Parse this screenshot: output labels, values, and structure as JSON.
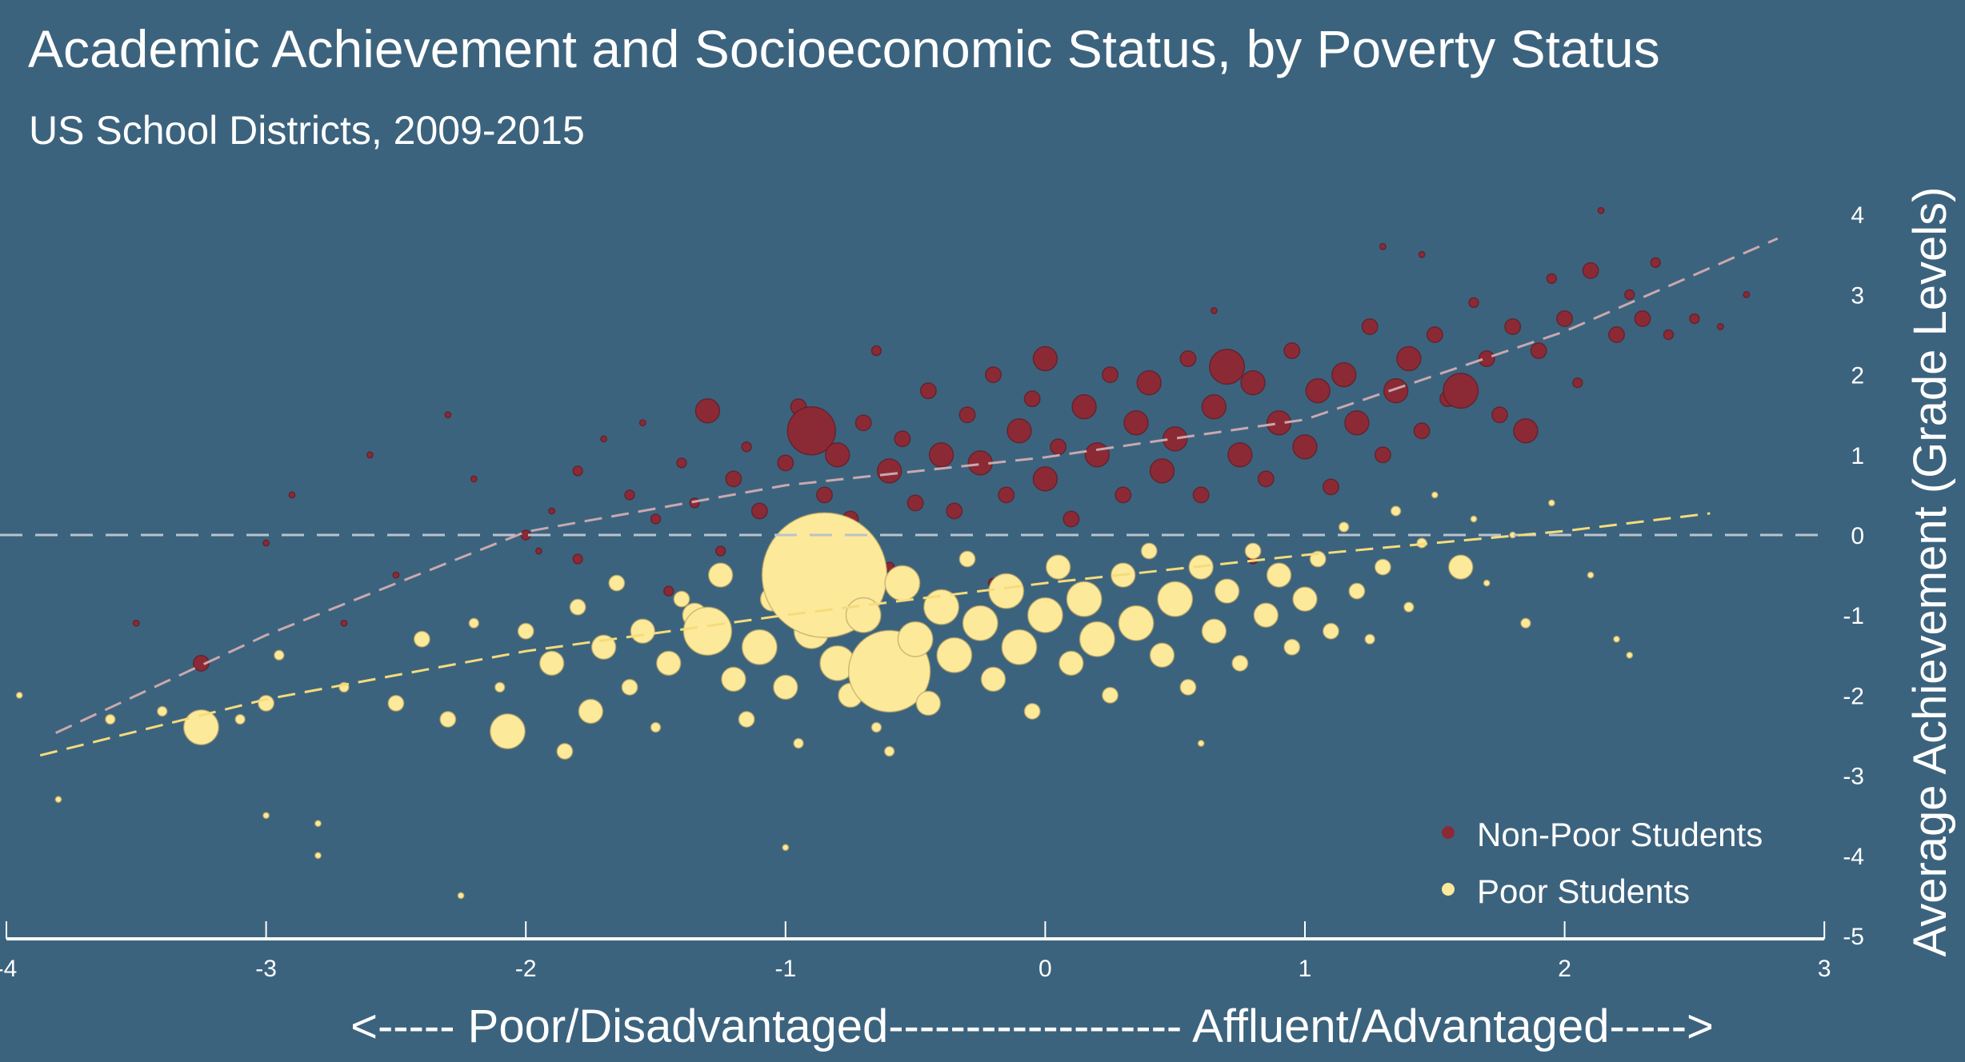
{
  "chart_data": {
    "type": "scatter",
    "title": "Academic Achievement and Socioeconomic Status, by Poverty Status",
    "subtitle": "US School Districts, 2009-2015",
    "xlabel": "<----- Poor/Disadvantaged------------------- Affluent/Advantaged----->",
    "ylabel": "Average Achievement (Grade Levels)",
    "xlim": [
      -4,
      3
    ],
    "ylim": [
      -5,
      4
    ],
    "x_ticks": [
      "-4",
      "-3",
      "-2",
      "-1",
      "0",
      "1",
      "2",
      "3"
    ],
    "y_ticks": [
      "4",
      "3",
      "2",
      "1",
      "0",
      "-1",
      "-2",
      "-3",
      "-4",
      "-5"
    ],
    "grid": false,
    "reference_line_y": 0,
    "legend_position": "bottom-right",
    "colors": {
      "background": "#3c637e",
      "non_poor": "#8b2a35",
      "poor": "#fde99a",
      "non_poor_trend": "#c9a9ae",
      "poor_trend": "#f5dc7a",
      "reference": "#b9c3cc"
    },
    "point_fields": [
      "x",
      "y",
      "relative_size"
    ],
    "series": [
      {
        "name": "Non-Poor Students",
        "points": [
          [
            -3.25,
            -1.6,
            3
          ],
          [
            -3.0,
            -0.1,
            1
          ],
          [
            -2.9,
            0.5,
            1
          ],
          [
            -2.6,
            1.0,
            1
          ],
          [
            -2.5,
            -0.5,
            1
          ],
          [
            -2.3,
            1.5,
            1
          ],
          [
            -2.2,
            0.7,
            1
          ],
          [
            -2.0,
            0.0,
            2
          ],
          [
            -1.95,
            -0.2,
            1
          ],
          [
            -1.9,
            0.3,
            1
          ],
          [
            -1.8,
            0.8,
            2
          ],
          [
            -1.8,
            -0.3,
            2
          ],
          [
            -1.7,
            1.2,
            1
          ],
          [
            -1.6,
            0.5,
            2
          ],
          [
            -1.55,
            1.4,
            1
          ],
          [
            -1.5,
            0.2,
            2
          ],
          [
            -1.45,
            -0.7,
            2
          ],
          [
            -1.4,
            0.9,
            2
          ],
          [
            -1.35,
            0.4,
            2
          ],
          [
            -1.3,
            1.55,
            4
          ],
          [
            -1.25,
            -0.2,
            2
          ],
          [
            -1.2,
            0.7,
            3
          ],
          [
            -1.15,
            1.1,
            2
          ],
          [
            -1.1,
            0.3,
            3
          ],
          [
            -1.05,
            -0.5,
            2
          ],
          [
            -1.0,
            0.9,
            3
          ],
          [
            -0.95,
            1.6,
            3
          ],
          [
            -0.9,
            1.3,
            6
          ],
          [
            -0.85,
            0.5,
            3
          ],
          [
            -0.8,
            1.0,
            4
          ],
          [
            -0.75,
            0.2,
            3
          ],
          [
            -0.7,
            1.4,
            3
          ],
          [
            -0.65,
            2.3,
            2
          ],
          [
            -0.6,
            0.8,
            4
          ],
          [
            -0.55,
            1.2,
            3
          ],
          [
            -0.5,
            0.4,
            3
          ],
          [
            -0.45,
            1.8,
            3
          ],
          [
            -0.4,
            1.0,
            4
          ],
          [
            -0.35,
            0.3,
            3
          ],
          [
            -0.3,
            1.5,
            3
          ],
          [
            -0.25,
            0.9,
            4
          ],
          [
            -0.2,
            2.0,
            3
          ],
          [
            -0.15,
            0.5,
            3
          ],
          [
            -0.1,
            1.3,
            4
          ],
          [
            -0.05,
            1.7,
            3
          ],
          [
            0.0,
            2.2,
            4
          ],
          [
            0.0,
            0.7,
            4
          ],
          [
            0.05,
            1.1,
            3
          ],
          [
            0.1,
            0.2,
            3
          ],
          [
            0.15,
            1.6,
            4
          ],
          [
            0.2,
            1.0,
            4
          ],
          [
            0.25,
            2.0,
            3
          ],
          [
            0.3,
            0.5,
            3
          ],
          [
            0.35,
            1.4,
            4
          ],
          [
            0.4,
            1.9,
            4
          ],
          [
            0.45,
            0.8,
            4
          ],
          [
            0.5,
            1.2,
            4
          ],
          [
            0.55,
            2.2,
            3
          ],
          [
            0.6,
            0.5,
            3
          ],
          [
            0.65,
            1.6,
            4
          ],
          [
            0.7,
            2.1,
            5
          ],
          [
            0.75,
            1.0,
            4
          ],
          [
            0.8,
            1.9,
            4
          ],
          [
            0.85,
            0.7,
            3
          ],
          [
            0.9,
            1.4,
            4
          ],
          [
            0.95,
            2.3,
            3
          ],
          [
            1.0,
            1.1,
            4
          ],
          [
            1.05,
            1.8,
            4
          ],
          [
            1.1,
            0.6,
            3
          ],
          [
            1.15,
            2.0,
            4
          ],
          [
            1.2,
            1.4,
            4
          ],
          [
            1.25,
            2.6,
            3
          ],
          [
            1.3,
            1.0,
            3
          ],
          [
            1.35,
            1.8,
            4
          ],
          [
            1.4,
            2.2,
            4
          ],
          [
            1.45,
            1.3,
            3
          ],
          [
            1.5,
            2.5,
            3
          ],
          [
            1.55,
            1.7,
            3
          ],
          [
            1.6,
            1.8,
            5
          ],
          [
            1.65,
            2.9,
            2
          ],
          [
            1.7,
            2.2,
            3
          ],
          [
            1.75,
            1.5,
            3
          ],
          [
            1.8,
            2.6,
            3
          ],
          [
            1.85,
            1.3,
            4
          ],
          [
            1.9,
            2.3,
            3
          ],
          [
            1.95,
            3.2,
            2
          ],
          [
            2.0,
            2.7,
            3
          ],
          [
            2.05,
            1.9,
            2
          ],
          [
            2.1,
            3.3,
            3
          ],
          [
            2.14,
            4.05,
            1
          ],
          [
            2.2,
            2.5,
            3
          ],
          [
            2.25,
            3.0,
            2
          ],
          [
            2.3,
            2.7,
            3
          ],
          [
            2.35,
            3.4,
            2
          ],
          [
            2.4,
            2.5,
            2
          ],
          [
            2.5,
            2.7,
            2
          ],
          [
            2.6,
            2.6,
            1
          ],
          [
            2.7,
            3.0,
            1
          ],
          [
            1.45,
            3.5,
            1
          ],
          [
            1.3,
            3.6,
            1
          ],
          [
            0.65,
            2.8,
            1
          ],
          [
            0.0,
            -1.0,
            1
          ],
          [
            -0.2,
            -0.6,
            2
          ],
          [
            -0.6,
            -0.4,
            2
          ],
          [
            0.8,
            -0.3,
            2
          ],
          [
            -2.7,
            -1.1,
            1
          ],
          [
            -3.5,
            -1.1,
            1
          ]
        ],
        "trend": [
          [
            -3.81,
            -2.47
          ],
          [
            -3.0,
            -1.25
          ],
          [
            -2.0,
            0.04
          ],
          [
            -1.0,
            0.62
          ],
          [
            0.0,
            0.97
          ],
          [
            1.0,
            1.44
          ],
          [
            2.0,
            2.54
          ],
          [
            2.82,
            3.7
          ]
        ]
      },
      {
        "name": "Poor Students",
        "points": [
          [
            -3.95,
            -2.0,
            1
          ],
          [
            -3.8,
            -3.3,
            1
          ],
          [
            -3.6,
            -2.3,
            2
          ],
          [
            -3.4,
            -2.2,
            2
          ],
          [
            -3.25,
            -2.4,
            5
          ],
          [
            -3.1,
            -2.3,
            2
          ],
          [
            -3.0,
            -2.1,
            3
          ],
          [
            -2.95,
            -1.5,
            2
          ],
          [
            -2.8,
            -3.6,
            1
          ],
          [
            -2.7,
            -1.9,
            2
          ],
          [
            -2.5,
            -2.1,
            3
          ],
          [
            -2.4,
            -1.3,
            3
          ],
          [
            -2.3,
            -2.3,
            3
          ],
          [
            -2.2,
            -1.1,
            2
          ],
          [
            -2.1,
            -1.9,
            2
          ],
          [
            -2.07,
            -2.45,
            5
          ],
          [
            -2.0,
            -1.2,
            3
          ],
          [
            -1.9,
            -1.6,
            4
          ],
          [
            -1.85,
            -2.7,
            3
          ],
          [
            -1.8,
            -0.9,
            3
          ],
          [
            -1.75,
            -2.2,
            4
          ],
          [
            -1.7,
            -1.4,
            4
          ],
          [
            -1.65,
            -0.6,
            3
          ],
          [
            -1.6,
            -1.9,
            3
          ],
          [
            -1.55,
            -1.2,
            4
          ],
          [
            -1.5,
            -2.4,
            2
          ],
          [
            -1.45,
            -1.6,
            4
          ],
          [
            -1.4,
            -0.8,
            3
          ],
          [
            -1.35,
            -1.0,
            4
          ],
          [
            -1.3,
            -1.2,
            6
          ],
          [
            -1.25,
            -0.5,
            4
          ],
          [
            -1.2,
            -1.8,
            4
          ],
          [
            -1.15,
            -2.3,
            3
          ],
          [
            -1.1,
            -1.4,
            5
          ],
          [
            -1.05,
            -0.8,
            4
          ],
          [
            -1.0,
            -1.9,
            4
          ],
          [
            -0.95,
            -2.6,
            2
          ],
          [
            -0.9,
            -1.2,
            5
          ],
          [
            -0.85,
            -0.5,
            10
          ],
          [
            -0.8,
            -1.6,
            5
          ],
          [
            -0.75,
            -2.0,
            4
          ],
          [
            -0.7,
            -1.0,
            5
          ],
          [
            -0.65,
            -2.4,
            2
          ],
          [
            -0.6,
            -1.7,
            8
          ],
          [
            -0.55,
            -0.6,
            5
          ],
          [
            -0.5,
            -1.3,
            5
          ],
          [
            -0.45,
            -2.1,
            4
          ],
          [
            -0.4,
            -0.9,
            5
          ],
          [
            -0.35,
            -1.5,
            5
          ],
          [
            -0.3,
            -0.3,
            3
          ],
          [
            -0.25,
            -1.1,
            5
          ],
          [
            -0.2,
            -1.8,
            4
          ],
          [
            -0.15,
            -0.7,
            5
          ],
          [
            -0.1,
            -1.4,
            5
          ],
          [
            -0.05,
            -2.2,
            3
          ],
          [
            0.0,
            -1.0,
            5
          ],
          [
            0.05,
            -0.4,
            4
          ],
          [
            0.1,
            -1.6,
            4
          ],
          [
            0.15,
            -0.8,
            5
          ],
          [
            0.2,
            -1.3,
            5
          ],
          [
            0.25,
            -2.0,
            3
          ],
          [
            0.3,
            -0.5,
            4
          ],
          [
            0.35,
            -1.1,
            5
          ],
          [
            0.4,
            -0.2,
            3
          ],
          [
            0.45,
            -1.5,
            4
          ],
          [
            0.5,
            -0.8,
            5
          ],
          [
            0.55,
            -1.9,
            3
          ],
          [
            0.6,
            -0.4,
            4
          ],
          [
            0.65,
            -1.2,
            4
          ],
          [
            0.7,
            -0.7,
            4
          ],
          [
            0.75,
            -1.6,
            3
          ],
          [
            0.8,
            -0.2,
            3
          ],
          [
            0.85,
            -1.0,
            4
          ],
          [
            0.9,
            -0.5,
            4
          ],
          [
            0.95,
            -1.4,
            3
          ],
          [
            1.0,
            -0.8,
            4
          ],
          [
            1.05,
            -0.3,
            3
          ],
          [
            1.1,
            -1.2,
            3
          ],
          [
            1.15,
            0.1,
            2
          ],
          [
            1.2,
            -0.7,
            3
          ],
          [
            1.25,
            -1.3,
            2
          ],
          [
            1.3,
            -0.4,
            3
          ],
          [
            1.35,
            0.3,
            2
          ],
          [
            1.4,
            -0.9,
            2
          ],
          [
            1.45,
            -0.1,
            2
          ],
          [
            1.5,
            0.5,
            1
          ],
          [
            1.6,
            -0.4,
            4
          ],
          [
            1.65,
            0.2,
            1
          ],
          [
            1.7,
            -0.6,
            1
          ],
          [
            1.8,
            0.0,
            1
          ],
          [
            1.85,
            -1.1,
            2
          ],
          [
            1.95,
            0.4,
            1
          ],
          [
            2.1,
            -0.5,
            1
          ],
          [
            2.2,
            -1.3,
            1
          ],
          [
            2.25,
            -1.5,
            1
          ],
          [
            -1.0,
            -3.9,
            1
          ],
          [
            -2.25,
            -4.5,
            1
          ],
          [
            -2.8,
            -4.0,
            1
          ],
          [
            -3.0,
            -3.5,
            1
          ],
          [
            0.6,
            -2.6,
            1
          ],
          [
            -0.6,
            -2.7,
            2
          ]
        ],
        "trend": [
          [
            -3.87,
            -2.75
          ],
          [
            -3.0,
            -2.05
          ],
          [
            -2.0,
            -1.45
          ],
          [
            -1.0,
            -1.0
          ],
          [
            0.0,
            -0.6
          ],
          [
            1.0,
            -0.25
          ],
          [
            2.0,
            0.05
          ],
          [
            2.56,
            0.27
          ]
        ]
      }
    ]
  }
}
